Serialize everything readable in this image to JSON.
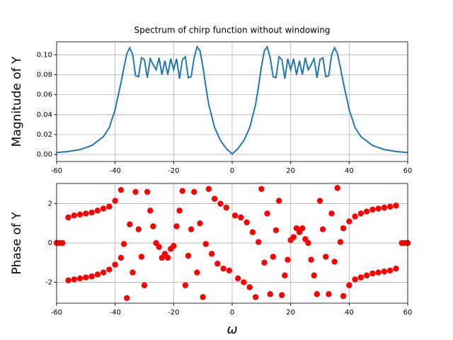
{
  "chart_data": [
    {
      "type": "line",
      "title": "Spectrum of chirp function without windowing",
      "ylabel": "Magnitude of Y",
      "x": [
        -60,
        -56,
        -52,
        -48,
        -44,
        -42,
        -40,
        -38,
        -37,
        -36,
        -35,
        -34,
        -33,
        -32,
        -31,
        -30,
        -29,
        -28,
        -27,
        -26,
        -25,
        -24,
        -23,
        -22,
        -21,
        -20,
        -19,
        -18,
        -17,
        -16,
        -15,
        -14,
        -13,
        -12,
        -11,
        -10,
        -9,
        -8,
        -6,
        -4,
        -2,
        0,
        2,
        4,
        6,
        8,
        9,
        10,
        11,
        12,
        13,
        14,
        15,
        16,
        17,
        18,
        19,
        20,
        21,
        22,
        23,
        24,
        25,
        26,
        27,
        28,
        29,
        30,
        31,
        32,
        33,
        34,
        35,
        36,
        37,
        38,
        40,
        42,
        44,
        48,
        52,
        56,
        60
      ],
      "series": [
        {
          "color": "#1f77b4",
          "values": [
            0.002,
            0.003,
            0.005,
            0.009,
            0.018,
            0.027,
            0.045,
            0.072,
            0.087,
            0.101,
            0.107,
            0.1,
            0.079,
            0.078,
            0.097,
            0.095,
            0.077,
            0.096,
            0.09,
            0.085,
            0.097,
            0.08,
            0.094,
            0.08,
            0.096,
            0.085,
            0.096,
            0.076,
            0.095,
            0.098,
            0.077,
            0.078,
            0.097,
            0.108,
            0.104,
            0.088,
            0.068,
            0.05,
            0.027,
            0.014,
            0.006,
            0.0005,
            0.006,
            0.014,
            0.027,
            0.05,
            0.068,
            0.088,
            0.104,
            0.108,
            0.097,
            0.078,
            0.077,
            0.098,
            0.095,
            0.076,
            0.096,
            0.085,
            0.096,
            0.08,
            0.094,
            0.08,
            0.097,
            0.085,
            0.09,
            0.096,
            0.077,
            0.095,
            0.097,
            0.078,
            0.079,
            0.1,
            0.107,
            0.101,
            0.087,
            0.072,
            0.045,
            0.027,
            0.018,
            0.009,
            0.005,
            0.003,
            0.002
          ]
        }
      ],
      "xlim": [
        -60,
        60
      ],
      "xticks": [
        -60,
        -40,
        -20,
        0,
        20,
        40,
        60
      ],
      "ylim": [
        -0.007,
        0.113
      ],
      "yticks": [
        {
          "value": 0,
          "label": "0.00"
        },
        {
          "value": 0.02,
          "label": "0.02"
        },
        {
          "value": 0.04,
          "label": "0.04"
        },
        {
          "value": 0.06,
          "label": "0.06"
        },
        {
          "value": 0.08,
          "label": "0.08"
        },
        {
          "value": 0.1,
          "label": "0.10"
        }
      ],
      "grid": true
    },
    {
      "type": "scatter",
      "ylabel": "Phase of Y",
      "xlabel": "ω",
      "x": [
        -60,
        -59,
        -58,
        -56,
        -54,
        -52,
        -50,
        -48,
        -46,
        -44,
        -42,
        -40,
        -38,
        -56,
        -54,
        -52,
        -50,
        -48,
        -46,
        -44,
        -42,
        -40,
        -38,
        -37,
        -36,
        -35,
        -34,
        -33,
        -32,
        -31,
        -30,
        -29,
        -28,
        -27,
        -26,
        -25,
        -24,
        -23,
        -22,
        -21,
        -20,
        -19,
        -18,
        -17,
        -16,
        -15,
        -14,
        -13,
        -12,
        -11,
        -10,
        -9,
        -8,
        -7,
        -6,
        -5,
        -4,
        -3,
        -2,
        -1,
        1,
        2,
        3,
        4,
        5,
        6,
        7,
        8,
        9,
        10,
        11,
        12,
        13,
        14,
        15,
        16,
        17,
        18,
        19,
        20,
        21,
        22,
        23,
        24,
        25,
        26,
        27,
        28,
        29,
        30,
        31,
        32,
        33,
        34,
        35,
        36,
        37,
        38,
        40,
        42,
        44,
        46,
        48,
        50,
        52,
        54,
        56,
        38,
        40,
        42,
        44,
        46,
        48,
        50,
        52,
        54,
        56,
        58,
        59,
        60
      ],
      "series": [
        {
          "color": "red",
          "values": [
            0,
            0,
            0,
            1.3,
            1.4,
            1.45,
            1.5,
            1.55,
            1.65,
            1.75,
            1.85,
            2.15,
            2.7,
            -1.9,
            -1.85,
            -1.8,
            -1.75,
            -1.7,
            -1.6,
            -1.5,
            -1.35,
            -1.1,
            -0.75,
            -0.05,
            -2.8,
            0.95,
            -1.5,
            2.6,
            0.7,
            -0.7,
            -2.15,
            2.6,
            1.65,
            0.85,
            0,
            -0.2,
            -0.75,
            -0.55,
            -0.75,
            -0.3,
            -0.15,
            0.85,
            1.65,
            2.65,
            -2.15,
            -0.65,
            0.7,
            2.6,
            -1.5,
            1.0,
            -2.75,
            -0.05,
            2.75,
            -0.55,
            2.25,
            -1.05,
            2.0,
            -1.3,
            1.8,
            -1.4,
            1.4,
            -1.8,
            1.3,
            -2.0,
            1.05,
            -2.25,
            0.55,
            -2.75,
            0.05,
            2.75,
            -1.0,
            1.5,
            -2.6,
            -0.7,
            0.65,
            2.15,
            -2.65,
            -1.65,
            -0.85,
            0.15,
            0.3,
            0.75,
            0.55,
            0.75,
            0.2,
            0,
            -0.85,
            -1.65,
            -2.6,
            2.15,
            0.7,
            -0.7,
            -2.6,
            1.5,
            -0.95,
            2.8,
            0.05,
            -2.7,
            -2.15,
            -1.85,
            -1.75,
            -1.65,
            -1.55,
            -1.5,
            -1.45,
            -1.4,
            -1.3,
            0.75,
            1.1,
            1.35,
            1.5,
            1.6,
            1.7,
            1.75,
            1.8,
            1.85,
            1.9,
            0,
            0,
            0
          ]
        }
      ],
      "xlim": [
        -60,
        60
      ],
      "xticks": [
        -60,
        -40,
        -20,
        0,
        20,
        40,
        60
      ],
      "ylim": [
        -3.06,
        3.03
      ],
      "yticks": [
        -2,
        0,
        2
      ],
      "grid": true
    }
  ]
}
